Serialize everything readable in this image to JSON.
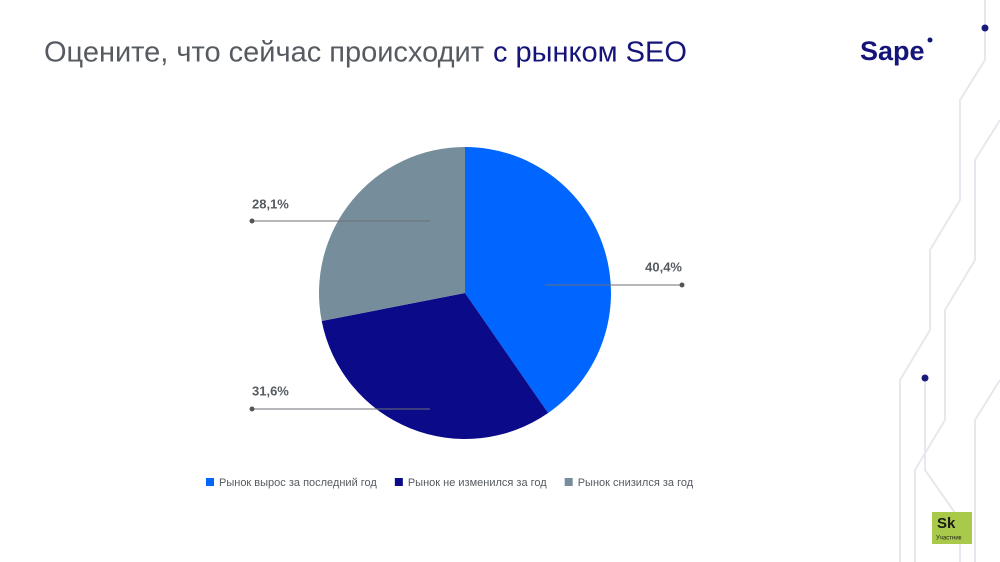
{
  "chart_data": {
    "type": "pie",
    "title": [
      "Оцените, что сейчас происходит",
      "с рынком SEO"
    ],
    "logo": "Sape",
    "badge": {
      "mark": "Sk",
      "text": "Участник"
    },
    "categories": [
      "Рынок вырос за последний год",
      "Рынок не изменился за год",
      "Рынок снизился за год"
    ],
    "values": [
      40.4,
      31.6,
      28.1
    ],
    "value_labels": [
      "40,4%",
      "31,6%",
      "28,1%"
    ],
    "colors": [
      "#0066ff",
      "#0b0b8a",
      "#768d9b"
    ],
    "legend": "bottom"
  }
}
